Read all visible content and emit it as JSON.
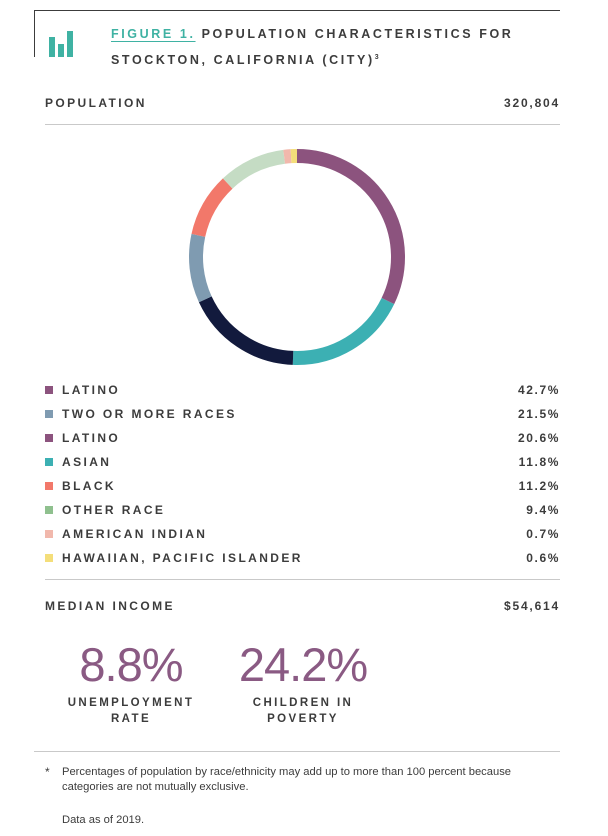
{
  "figure": {
    "label": "FIGURE 1.",
    "title_line1": "POPULATION CHARACTERISTICS FOR",
    "title_line2": "STOCKTON, CALIFORNIA (CITY)",
    "footnote_ref": "3",
    "icon": "bar-chart-icon",
    "accent_color": "#3fb2a3"
  },
  "population": {
    "label": "POPULATION",
    "value": "320,804"
  },
  "median_income": {
    "label": "MEDIAN INCOME",
    "value": "$54,614"
  },
  "chart_data": {
    "type": "pie",
    "style": "donut",
    "categories": [
      "LATINO",
      "TWO OR MORE RACES",
      "LATINO",
      "ASIAN",
      "BLACK",
      "OTHER RACE",
      "AMERICAN INDIAN",
      "HAWAIIAN, PACIFIC ISLANDER"
    ],
    "values": [
      42.7,
      21.5,
      20.6,
      11.8,
      11.2,
      9.4,
      0.7,
      0.6
    ],
    "value_labels": [
      "42.7%",
      "21.5%",
      "20.6%",
      "11.8%",
      "11.2%",
      "9.4%",
      "0.7%",
      "0.6%"
    ],
    "legend_colors": [
      "#8c537e",
      "#7f9bb1",
      "#8c537e",
      "#3cb0b3",
      "#f2786a",
      "#8fc08e",
      "#f1b8ac",
      "#f4de7a"
    ],
    "ring_segments": [
      {
        "color": "#8c537e",
        "value": 20.6
      },
      {
        "color": "#3cb0b3",
        "value": 11.8
      },
      {
        "color": "#121a3d",
        "value": 11.2
      },
      {
        "color": "#7f9bb1",
        "value": 6.6
      },
      {
        "color": "#f2786a",
        "value": 6.1
      },
      {
        "color": "#c5dcc4",
        "value": 6.4
      },
      {
        "color": "#f1b8ac",
        "value": 0.7
      },
      {
        "color": "#f4de7a",
        "value": 0.6
      }
    ],
    "legend_position": "bottom"
  },
  "stats": [
    {
      "value": "8.8%",
      "label_line1": "UNEMPLOYMENT",
      "label_line2": "RATE"
    },
    {
      "value": "24.2%",
      "label_line1": "CHILDREN IN",
      "label_line2": "POVERTY"
    }
  ],
  "stats_color": "#8a5a83",
  "footnote": {
    "marker": "*",
    "text": "Percentages of population by race/ethnicity may add up to more than 100 percent because categories are not mutually exclusive.",
    "data_as_of": "Data as of 2019."
  }
}
